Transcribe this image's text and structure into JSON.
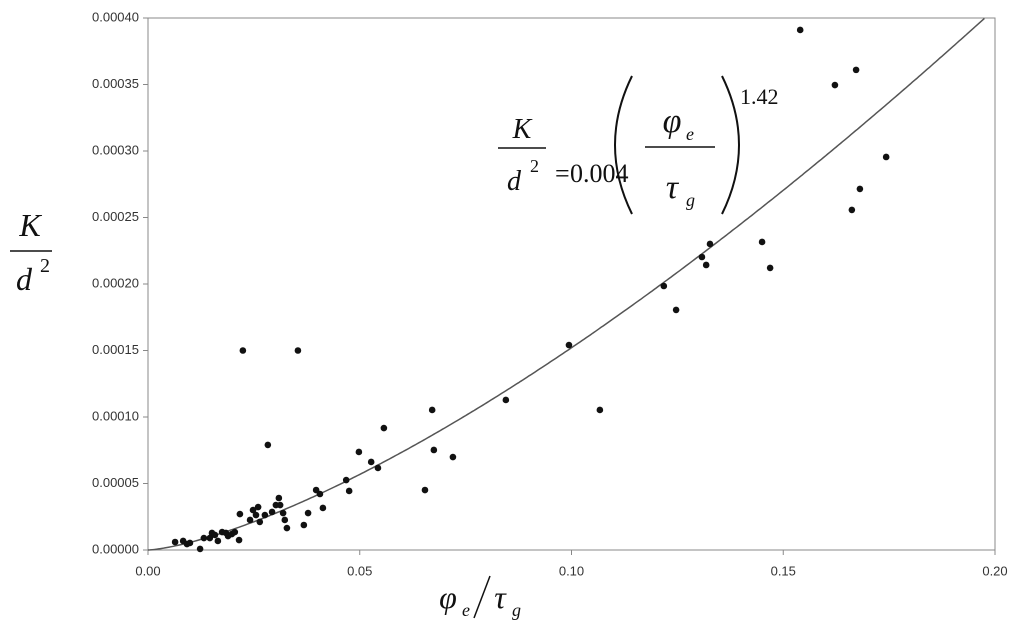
{
  "chart_data": {
    "type": "scatter",
    "x": [
      0.0064,
      0.0083,
      0.0092,
      0.0099,
      0.0123,
      0.0132,
      0.0146,
      0.0151,
      0.0158,
      0.0165,
      0.0175,
      0.0184,
      0.0189,
      0.0198,
      0.0205,
      0.0215,
      0.0217,
      0.0224,
      0.0241,
      0.0248,
      0.0255,
      0.026,
      0.0264,
      0.0276,
      0.0283,
      0.0293,
      0.0302,
      0.0309,
      0.0312,
      0.0319,
      0.0323,
      0.0328,
      0.0354,
      0.0368,
      0.0378,
      0.0397,
      0.0406,
      0.0413,
      0.0468,
      0.0475,
      0.0498,
      0.0527,
      0.0543,
      0.0557,
      0.0654,
      0.0671,
      0.0675,
      0.072,
      0.0845,
      0.0994,
      0.1067,
      0.1218,
      0.1247,
      0.1308,
      0.1318,
      0.1327,
      0.145,
      0.1469,
      0.154,
      0.1622,
      0.1662,
      0.1672,
      0.1681,
      0.1743
    ],
    "values": [
      6e-06,
      6.8e-06,
      4.5e-06,
      5.3e-06,
      8e-07,
      9e-06,
      9e-06,
      1.28e-05,
      1.13e-05,
      6.8e-06,
      1.35e-05,
      1.28e-05,
      1.05e-05,
      1.2e-05,
      1.35e-05,
      7.5e-06,
      2.7e-05,
      0.00015,
      2.26e-05,
      3e-05,
      2.63e-05,
      3.23e-05,
      2.11e-05,
      2.63e-05,
      7.9e-05,
      2.86e-05,
      3.38e-05,
      3.91e-05,
      3.38e-05,
      2.78e-05,
      2.26e-05,
      1.65e-05,
      0.00015,
      1.88e-05,
      2.78e-05,
      4.51e-05,
      4.21e-05,
      3.16e-05,
      5.26e-05,
      4.44e-05,
      7.37e-05,
      6.62e-05,
      6.17e-05,
      9.17e-05,
      4.51e-05,
      0.0001053,
      7.52e-05,
      6.99e-05,
      0.0001128,
      0.0001541,
      0.0001053,
      0.0001985,
      0.0001805,
      0.0002203,
      0.0002143,
      0.0002301,
      0.0002316,
      0.0002121,
      0.000391,
      0.0003496,
      0.0002557,
      0.000361,
      0.0002715,
      0.0002955
    ],
    "color": "#111111",
    "fit": {
      "coefficient": 0.004,
      "exponent": 1.42,
      "color": "#555555"
    },
    "y_label": {
      "numerator": "K",
      "denominator": "d",
      "superscript": "2"
    },
    "x_label": {
      "numerator": "φ",
      "numerator_subscript": "e",
      "denominator": "τ",
      "denominator_subscript": "g"
    },
    "equation_relation": "=",
    "xlim": [
      0,
      0.2
    ],
    "ylim": [
      0,
      0.0004
    ],
    "xticks": [
      {
        "value": 0,
        "label": "0.00"
      },
      {
        "value": 0.05,
        "label": "0.05"
      },
      {
        "value": 0.1,
        "label": "0.10"
      },
      {
        "value": 0.15,
        "label": "0.15"
      },
      {
        "value": 0.2,
        "label": "0.20"
      }
    ],
    "yticks": [
      {
        "value": 0,
        "label": "0.00000"
      },
      {
        "value": 5e-05,
        "label": "0.00005"
      },
      {
        "value": 0.0001,
        "label": "0.00010"
      },
      {
        "value": 0.00015,
        "label": "0.00015"
      },
      {
        "value": 0.0002,
        "label": "0.00020"
      },
      {
        "value": 0.00025,
        "label": "0.00025"
      },
      {
        "value": 0.0003,
        "label": "0.00030"
      },
      {
        "value": 0.00035,
        "label": "0.00035"
      },
      {
        "value": 0.0004,
        "label": "0.00040"
      }
    ]
  }
}
